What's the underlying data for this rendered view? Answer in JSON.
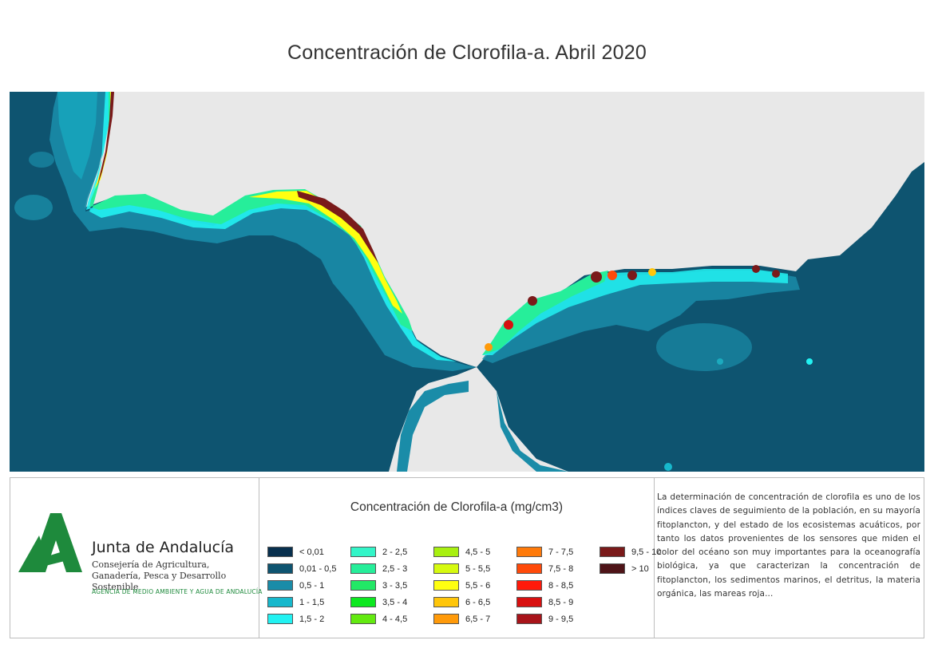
{
  "title": "Concentración de Clorofila-a. Abril 2020",
  "map": {
    "land_color": "#e8e8e8",
    "sea_color": "#0e5470"
  },
  "logo": {
    "name": "Junta de Andalucía",
    "department": "Consejería de Agricultura, Ganadería, Pesca y Desarrollo Sostenible",
    "agency": "AGENCIA DE MEDIO AMBIENTE Y AGUA DE ANDALUCÍA",
    "brand_color": "#1e8a3c"
  },
  "legend": {
    "title": "Concentración de Clorofila-a (mg/cm3)",
    "items": [
      {
        "label": "< 0,01",
        "color": "#08304e"
      },
      {
        "label": "0,01 - 0,5",
        "color": "#0e5470"
      },
      {
        "label": "0,5 - 1",
        "color": "#1a8ca8"
      },
      {
        "label": "1 - 1,5",
        "color": "#17b8cc"
      },
      {
        "label": "1,5 - 2",
        "color": "#22f2f2"
      },
      {
        "label": "2 - 2,5",
        "color": "#33f5c8"
      },
      {
        "label": "2,5 - 3",
        "color": "#26ee9a"
      },
      {
        "label": "3 - 3,5",
        "color": "#22e866"
      },
      {
        "label": "3,5 - 4",
        "color": "#0de820"
      },
      {
        "label": "4 - 4,5",
        "color": "#63ea10"
      },
      {
        "label": "4,5 - 5",
        "color": "#a8f010"
      },
      {
        "label": "5 - 5,5",
        "color": "#d6fa10"
      },
      {
        "label": "5,5 - 6",
        "color": "#ffff10"
      },
      {
        "label": "6 - 6,5",
        "color": "#ffc60a"
      },
      {
        "label": "6,5 - 7",
        "color": "#ff9a0a"
      },
      {
        "label": "7 - 7,5",
        "color": "#ff7a0a"
      },
      {
        "label": "7,5 - 8",
        "color": "#ff4a0a"
      },
      {
        "label": "8 - 8,5",
        "color": "#ff1a0a"
      },
      {
        "label": "8,5 - 9",
        "color": "#d81010"
      },
      {
        "label": "9 - 9,5",
        "color": "#a8141a"
      },
      {
        "label": "9,5 - 10",
        "color": "#7a1a1a"
      },
      {
        "label": "> 10",
        "color": "#4e1418"
      }
    ]
  },
  "description": "La determinación de concentración de clorofila es uno de los índices claves de seguimiento de la población, en su mayoría fitoplancton, y del estado de los ecosistemas acuáticos, por tanto los datos provenientes de los sensores que miden el color del océano son muy importantes para la oceanografía biológica, ya que caracterizan la concentración de fitoplancton, los sedimentos marinos, el detritus, la materia orgánica, las mareas roja..."
}
